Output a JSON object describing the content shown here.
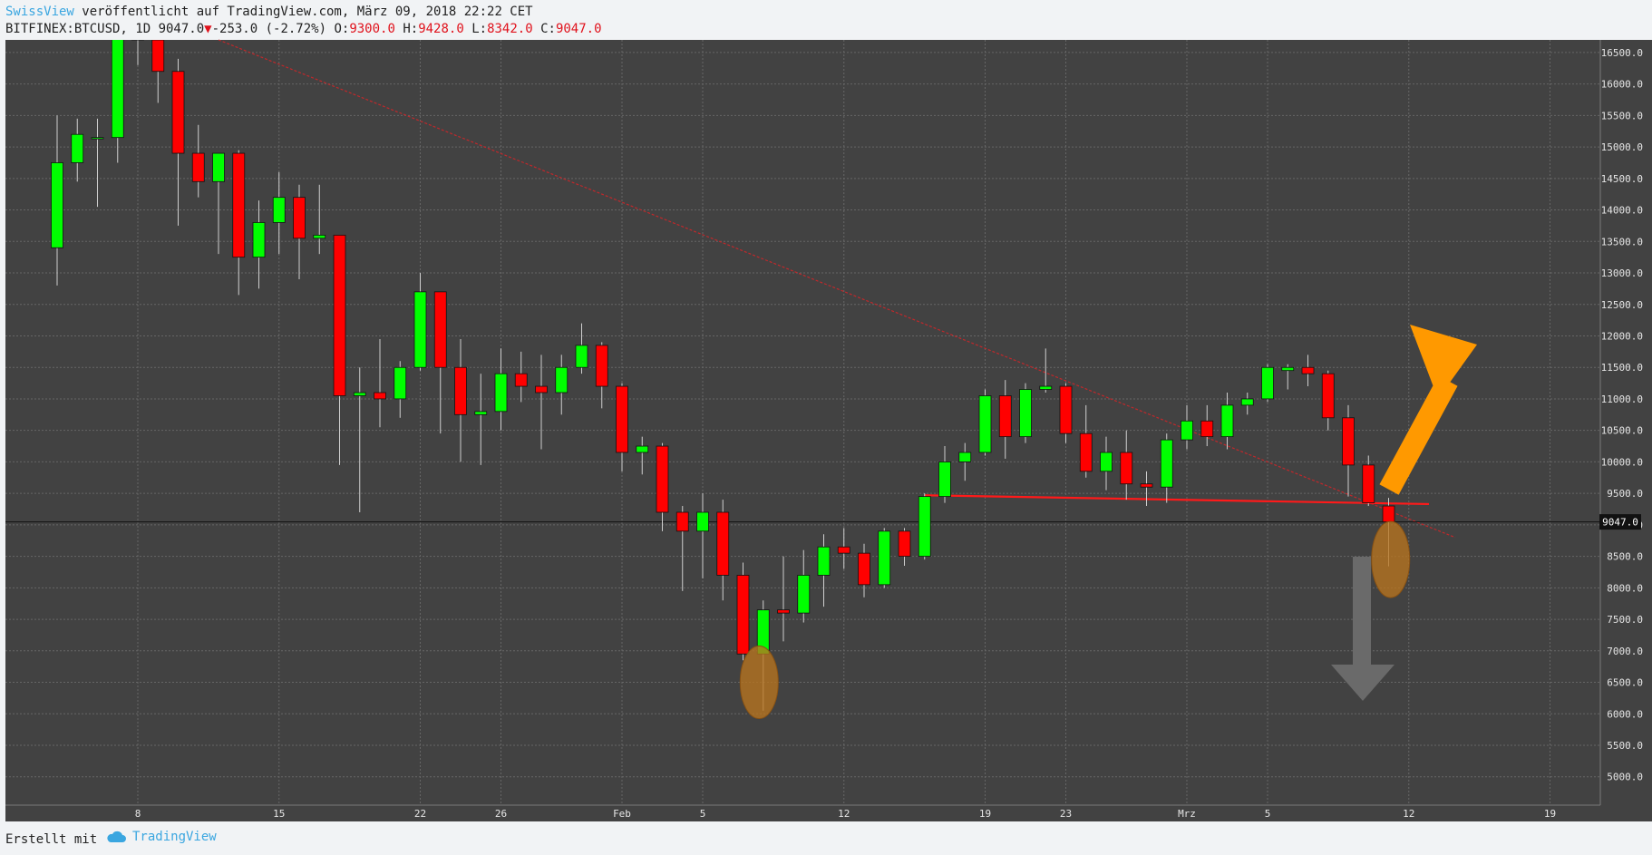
{
  "header": {
    "publisher": "SwissView",
    "published_text": " veröffentlicht auf TradingView.com, März 09, 2018 22:22 CET",
    "symbol": "BITFINEX:BTCUSD,",
    "interval": " 1D ",
    "last": "9047.0",
    "change": "-253.0 (-2.72%)",
    "o_label": " O:",
    "o_value": "9300.0",
    "h_label": " H:",
    "h_value": "9428.0",
    "l_label": " L:",
    "l_value": "8342.0",
    "c_label": " C:",
    "c_value": "9047.0"
  },
  "footer": {
    "made_with": "Erstellt mit",
    "brand": "TradingView",
    "brand_icon": "cloud-logo-icon"
  },
  "colors": {
    "background": "#424242",
    "grid": "#666666",
    "up": "#00ff00",
    "down": "#ff0000",
    "price_line": "#111111",
    "trend_line": "#c0282b",
    "support_line": "#ff1a1a",
    "up_arrow": "#ff9900",
    "down_arrow": "#6a6a6a",
    "highlight": "#b8741f"
  },
  "chart_data": {
    "type": "candlestick",
    "title": "BITFINEX:BTCUSD, 1D",
    "ylim": [
      4550,
      16700
    ],
    "y_ticks": [
      "5000.0",
      "5500.0",
      "6000.0",
      "6500.0",
      "7000.0",
      "7500.0",
      "8000.0",
      "8500.0",
      "9000.0",
      "9500.0",
      "10000.0",
      "10500.0",
      "11000.0",
      "11500.0",
      "12000.0",
      "12500.0",
      "13000.0",
      "13500.0",
      "14000.0",
      "14500.0",
      "15000.0",
      "15500.0",
      "16000.0",
      "16500.0"
    ],
    "x_ticks": [
      {
        "day": 8,
        "label": "8"
      },
      {
        "day": 15,
        "label": "15"
      },
      {
        "day": 22,
        "label": "22"
      },
      {
        "day": 26,
        "label": "26"
      },
      {
        "day": 32,
        "label": "Feb"
      },
      {
        "day": 36,
        "label": "5"
      },
      {
        "day": 43,
        "label": "12"
      },
      {
        "day": 50,
        "label": "19"
      },
      {
        "day": 54,
        "label": "23"
      },
      {
        "day": 60,
        "label": "Mrz"
      },
      {
        "day": 64,
        "label": "5"
      },
      {
        "day": 71,
        "label": "12"
      },
      {
        "day": 78,
        "label": "19"
      }
    ],
    "current_price": "9047.0",
    "candles": [
      [
        4,
        13400,
        15500,
        12800,
        14750
      ],
      [
        5,
        14750,
        15450,
        14450,
        15200
      ],
      [
        6,
        15150,
        15450,
        14050,
        15150
      ],
      [
        7,
        15150,
        17000,
        14750,
        16800
      ],
      [
        8,
        16800,
        17000,
        16300,
        16700
      ],
      [
        9,
        16700,
        17000,
        15700,
        16200
      ],
      [
        10,
        16200,
        16400,
        13750,
        14900
      ],
      [
        11,
        14900,
        15350,
        14200,
        14450
      ],
      [
        12,
        14450,
        14900,
        13300,
        14900
      ],
      [
        13,
        14900,
        14950,
        12650,
        13250
      ],
      [
        14,
        13250,
        14150,
        12750,
        13800
      ],
      [
        15,
        13800,
        14600,
        13300,
        14200
      ],
      [
        16,
        14200,
        14400,
        12900,
        13550
      ],
      [
        17,
        13550,
        14400,
        13300,
        13600
      ],
      [
        18,
        13600,
        13600,
        9950,
        11050
      ],
      [
        19,
        11050,
        11500,
        9200,
        11100
      ],
      [
        20,
        11100,
        11950,
        10550,
        11000
      ],
      [
        21,
        11000,
        11600,
        10700,
        11500
      ],
      [
        22,
        11500,
        13000,
        11450,
        12700
      ],
      [
        23,
        12700,
        12700,
        10450,
        11500
      ],
      [
        24,
        11500,
        11950,
        10000,
        10750
      ],
      [
        25,
        10750,
        11400,
        9950,
        10800
      ],
      [
        26,
        10800,
        11800,
        10500,
        11400
      ],
      [
        27,
        11400,
        11750,
        10950,
        11200
      ],
      [
        28,
        11200,
        11700,
        10200,
        11100
      ],
      [
        29,
        11100,
        11700,
        10750,
        11500
      ],
      [
        30,
        11500,
        12200,
        11400,
        11850
      ],
      [
        31,
        11850,
        11900,
        10850,
        11200
      ],
      [
        32,
        11200,
        11250,
        9850,
        10150
      ],
      [
        33,
        10150,
        10400,
        9800,
        10250
      ],
      [
        34,
        10250,
        10300,
        8900,
        9200
      ],
      [
        35,
        9200,
        9300,
        7950,
        8900
      ],
      [
        36,
        8900,
        9500,
        8150,
        9200
      ],
      [
        37,
        9200,
        9400,
        7800,
        8200
      ],
      [
        38,
        8200,
        8400,
        6850,
        6950
      ],
      [
        39,
        6950,
        7800,
        6050,
        7650
      ],
      [
        40,
        7650,
        8500,
        7150,
        7600
      ],
      [
        41,
        7600,
        8600,
        7450,
        8200
      ],
      [
        42,
        8200,
        8850,
        7700,
        8650
      ],
      [
        43,
        8650,
        8950,
        8300,
        8550
      ],
      [
        44,
        8550,
        8700,
        7850,
        8050
      ],
      [
        45,
        8050,
        8950,
        8000,
        8900
      ],
      [
        46,
        8900,
        8950,
        8350,
        8500
      ],
      [
        47,
        8500,
        9500,
        8450,
        9450
      ],
      [
        48,
        9450,
        10250,
        9350,
        10000
      ],
      [
        49,
        10000,
        10300,
        9700,
        10150
      ],
      [
        50,
        10150,
        11150,
        10100,
        11050
      ],
      [
        51,
        11050,
        11300,
        10050,
        10400
      ],
      [
        52,
        10400,
        11250,
        10300,
        11150
      ],
      [
        53,
        11150,
        11800,
        11100,
        11200
      ],
      [
        54,
        11200,
        11250,
        10300,
        10450
      ],
      [
        55,
        10450,
        10900,
        9750,
        9850
      ],
      [
        56,
        9850,
        10400,
        9550,
        10150
      ],
      [
        57,
        10150,
        10500,
        9400,
        9650
      ],
      [
        58,
        9650,
        9850,
        9300,
        9600
      ],
      [
        59,
        9600,
        10450,
        9350,
        10350
      ],
      [
        60,
        10350,
        10900,
        10200,
        10650
      ],
      [
        61,
        10650,
        10900,
        10250,
        10400
      ],
      [
        62,
        10400,
        11100,
        10200,
        10900
      ],
      [
        63,
        10900,
        11100,
        10750,
        11000
      ],
      [
        64,
        11000,
        11550,
        10950,
        11500
      ],
      [
        65,
        11450,
        11550,
        11150,
        11500
      ],
      [
        66,
        11500,
        11700,
        11200,
        11400
      ],
      [
        67,
        11400,
        11450,
        10500,
        10700
      ],
      [
        68,
        10700,
        10900,
        9450,
        9950
      ],
      [
        69,
        9950,
        10100,
        9300,
        9350
      ],
      [
        70,
        9300,
        9428,
        8342,
        9047
      ]
    ]
  }
}
